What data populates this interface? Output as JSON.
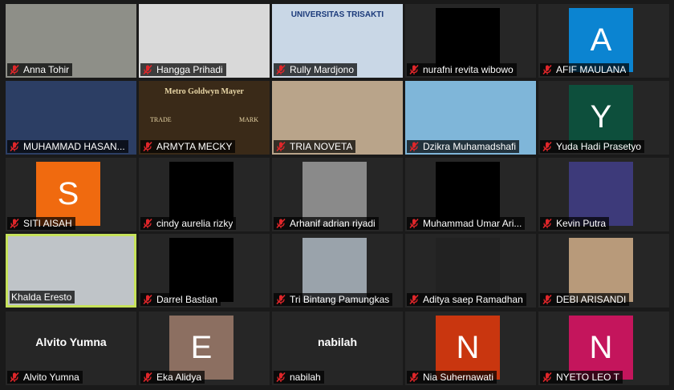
{
  "participants": [
    {
      "name": "Anna Tohir",
      "kind": "video",
      "bg": "#8e8f88",
      "muted": true
    },
    {
      "name": "Hangga Prihadi",
      "kind": "video",
      "bg": "#d9d9d9",
      "muted": true
    },
    {
      "name": "Rully Mardjono",
      "kind": "video",
      "bg": "#c9d7e6",
      "muted": true,
      "screen_text": "UNIVERSITAS TRISAKTI"
    },
    {
      "name": "nurafni revita wibowo",
      "kind": "dark",
      "bg": "#000000",
      "muted": true
    },
    {
      "name": "AFIF MAULANA",
      "kind": "avatar",
      "letter": "A",
      "bg": "#0b84d1",
      "muted": true
    },
    {
      "name": "MUHAMMAD HASAN...",
      "kind": "video",
      "bg": "#2c3e64",
      "muted": true
    },
    {
      "name": "ARMYTA MECKY",
      "kind": "video",
      "bg": "#3a2a18",
      "muted": true,
      "screen_text": "Metro Goldwyn Mayer",
      "sub_left": "TRADE",
      "sub_right": "MARK"
    },
    {
      "name": "TRIA NOVETA",
      "kind": "video",
      "bg": "#b9a48a",
      "muted": true
    },
    {
      "name": "Dzikra Muhamadshafi",
      "kind": "video",
      "bg": "#7fb6d9",
      "muted": true
    },
    {
      "name": "Yuda Hadi Prasetyo",
      "kind": "avatar",
      "letter": "Y",
      "bg": "#0d4f3c",
      "muted": true
    },
    {
      "name": "SITI AISAH",
      "kind": "avatar",
      "letter": "S",
      "bg": "#f06a0f",
      "muted": true
    },
    {
      "name": "cindy aurelia rizky",
      "kind": "dark",
      "bg": "#000000",
      "muted": true
    },
    {
      "name": "Arhanif adrian riyadi",
      "kind": "video",
      "bg": "#8a8a8a",
      "muted": true
    },
    {
      "name": "Muhammad Umar Ari...",
      "kind": "video",
      "bg": "#000000",
      "muted": true
    },
    {
      "name": "Kevin Putra",
      "kind": "video",
      "bg": "#3d3a7a",
      "muted": true
    },
    {
      "name": "Khalda Eresto",
      "kind": "video",
      "bg": "#bfc4c8",
      "muted": false,
      "active": true
    },
    {
      "name": "Darrel Bastian",
      "kind": "dark",
      "bg": "#000000",
      "muted": true
    },
    {
      "name": "Tri Bintang Pamungkas",
      "kind": "video",
      "bg": "#9aa3ab",
      "muted": true
    },
    {
      "name": "Aditya saep Ramadhan",
      "kind": "dark",
      "bg": "#222222",
      "muted": true
    },
    {
      "name": "DEBI ARISANDI",
      "kind": "video",
      "bg": "#b89a7a",
      "muted": true
    },
    {
      "name": "Alvito Yumna",
      "kind": "text",
      "display": "Alvito Yumna",
      "bg": "#262626",
      "muted": true
    },
    {
      "name": "Eka Alidya",
      "kind": "avatar",
      "letter": "E",
      "bg": "#8c6f61",
      "muted": true
    },
    {
      "name": "nabilah",
      "kind": "text",
      "display": "nabilah",
      "bg": "#262626",
      "muted": true
    },
    {
      "name": "Nia Suhernawati",
      "kind": "avatar",
      "letter": "N",
      "bg": "#c9360f",
      "muted": true
    },
    {
      "name": "NYETO LEO T",
      "kind": "avatar",
      "letter": "N",
      "bg": "#c4155c",
      "muted": true
    }
  ],
  "colors": {
    "active_border": "#c6e25a",
    "mute_icon": "#e0262a",
    "tile_bg": "#262626",
    "page_bg": "#1a1a1a"
  },
  "icons": {
    "mute": "muted-microphone-icon"
  }
}
